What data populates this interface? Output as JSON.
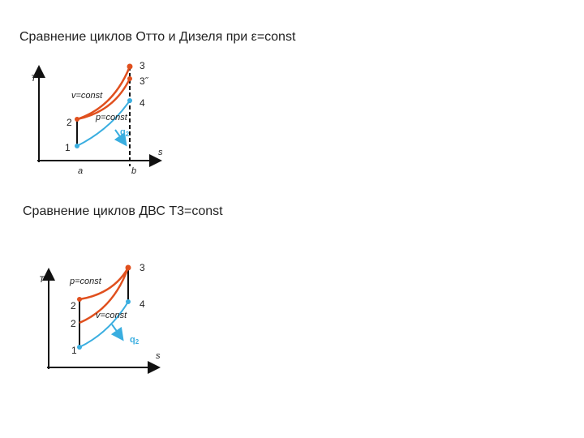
{
  "slide": {
    "title1": "Сравнение циклов Отто и Дизеля при ε=const",
    "diagram1": {
      "t_axis": "T",
      "s_axis": "s",
      "p1": "1",
      "p2": "2",
      "p3": "3",
      "p3b": "3˝",
      "p4": "4",
      "a": "a",
      "b": "b",
      "v_const": "v=const",
      "p_const": "p=const",
      "q": "q",
      "q_sub": "2"
    },
    "title2": "Сравнение циклов ДВС T3=const",
    "diagram2": {
      "t_axis": "T",
      "s_axis": "s",
      "p1": "1",
      "p2a": "2",
      "p2b": "2",
      "p3": "3",
      "p4": "4",
      "p_const": "p=const",
      "v_const": "v=const",
      "q": "q",
      "q_sub": "2"
    }
  }
}
